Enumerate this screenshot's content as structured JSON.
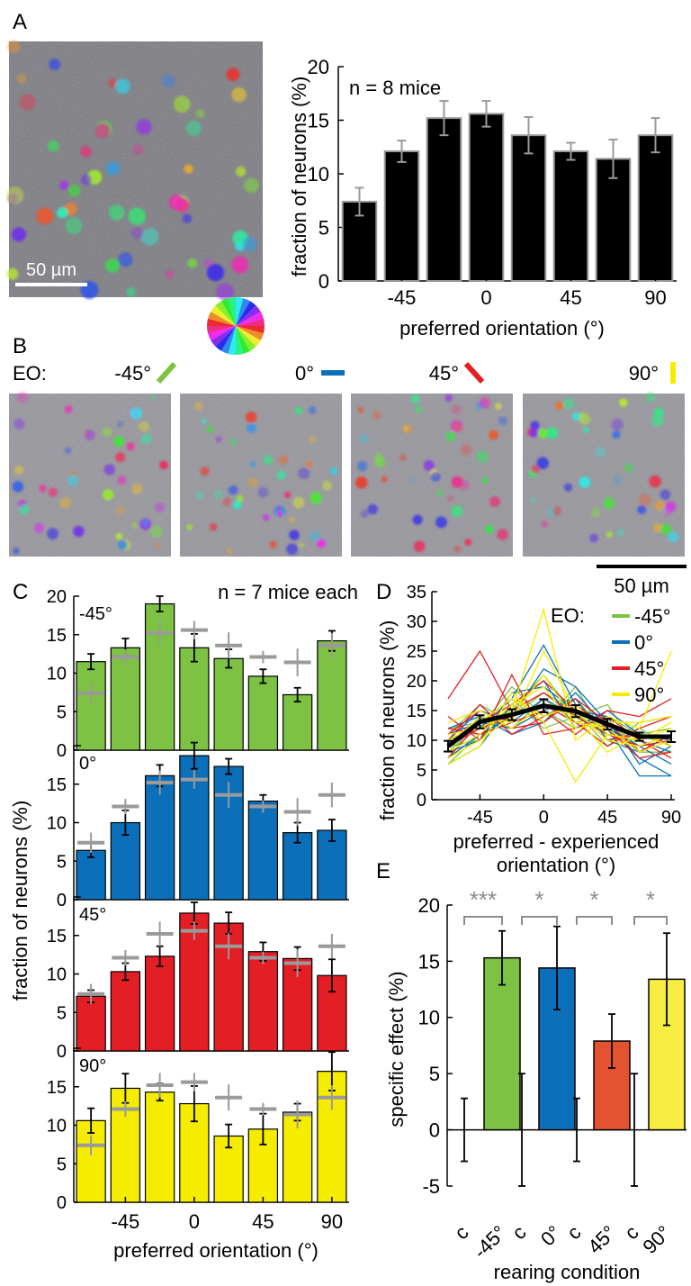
{
  "panel_labels": {
    "A": "A",
    "B": "B",
    "C": "C",
    "D": "D",
    "E": "E"
  },
  "scale_bar_A": "50 µm",
  "scale_bar_B": "50 µm",
  "eo_label": "EO:",
  "eo_titles": [
    "-45°",
    "0°",
    "45°",
    "90°"
  ],
  "eo_colors": {
    "-45": "#7dc242",
    "0": "#0b70b9",
    "45": "#e31e24",
    "90": "#f5ec00"
  },
  "chart_data": [
    {
      "id": "A",
      "type": "bar",
      "annotation": "n = 8 mice",
      "xlabel": "preferred orientation (°)",
      "ylabel": "fraction of neurons (%)",
      "ylim": [
        0,
        20
      ],
      "yticks": [
        0,
        5,
        10,
        15,
        20
      ],
      "xticks": [
        "-45",
        "0",
        "45",
        "90"
      ],
      "categories": [
        -67.5,
        -45,
        -22.5,
        0,
        22.5,
        45,
        67.5,
        90
      ],
      "values": [
        7.4,
        12.1,
        15.2,
        15.6,
        13.6,
        12.1,
        11.4,
        13.6
      ],
      "errors": [
        1.3,
        1.0,
        1.6,
        1.2,
        1.7,
        0.8,
        1.8,
        1.6
      ],
      "bar_color": "#000000"
    },
    {
      "id": "C",
      "type": "bar",
      "annotation": "n = 7 mice each",
      "xlabel": "preferred orientation (°)",
      "ylabel": "fraction of neurons (%)",
      "xticks": [
        "-45",
        "0",
        "45",
        "90"
      ],
      "categories": [
        -67.5,
        -45,
        -22.5,
        0,
        22.5,
        45,
        67.5,
        90
      ],
      "control_means": [
        7.4,
        12.1,
        15.2,
        15.6,
        13.6,
        12.1,
        11.4,
        13.6
      ],
      "control_errors": [
        1.3,
        1.0,
        1.6,
        1.2,
        1.7,
        0.8,
        1.8,
        1.6
      ],
      "subplots": [
        {
          "label": "-45°",
          "color": "#7dc242",
          "ylim": [
            0,
            20
          ],
          "yticks": [
            0,
            5,
            10,
            15,
            20
          ],
          "values": [
            11.5,
            13.3,
            19.0,
            13.3,
            11.9,
            9.6,
            7.2,
            14.2
          ],
          "errors": [
            1.0,
            1.2,
            1.0,
            1.8,
            1.2,
            0.9,
            0.9,
            1.3
          ]
        },
        {
          "label": "0°",
          "color": "#0b70b9",
          "ylim": [
            0,
            20
          ],
          "yticks": [
            0,
            5,
            10,
            15
          ],
          "values": [
            6.4,
            10.0,
            16.1,
            18.7,
            17.3,
            12.8,
            8.7,
            9.0
          ],
          "errors": [
            0.9,
            1.6,
            1.4,
            1.7,
            1.0,
            0.8,
            1.3,
            1.4
          ]
        },
        {
          "label": "45°",
          "color": "#e31e24",
          "ylim": [
            0,
            20
          ],
          "yticks": [
            0,
            5,
            10,
            15
          ],
          "values": [
            7.1,
            10.3,
            12.3,
            17.9,
            16.6,
            12.9,
            12.0,
            9.8
          ],
          "errors": [
            0.8,
            1.1,
            1.3,
            1.4,
            1.4,
            1.2,
            1.5,
            2.1
          ]
        },
        {
          "label": "90°",
          "color": "#f5ec00",
          "ylim": [
            0,
            20
          ],
          "yticks": [
            0,
            5,
            10,
            15
          ],
          "values": [
            10.6,
            14.8,
            14.3,
            12.8,
            8.6,
            9.5,
            11.7,
            17.0
          ],
          "errors": [
            1.6,
            1.9,
            1.1,
            2.3,
            1.5,
            2.0,
            1.1,
            2.5
          ]
        }
      ]
    },
    {
      "id": "D",
      "type": "line",
      "xlabel_lines": [
        "preferred - experienced",
        "orientation (°)"
      ],
      "ylabel": "fraction of neurons (%)",
      "xlim": [
        -67.5,
        90
      ],
      "ylim": [
        0,
        35
      ],
      "yticks": [
        0,
        5,
        10,
        15,
        20,
        25,
        30,
        35
      ],
      "xticks": [
        "-45",
        "0",
        "45",
        "90"
      ],
      "x": [
        -67.5,
        -45,
        -22.5,
        0,
        22.5,
        45,
        67.5,
        90
      ],
      "legend_title": "EO:",
      "legend": [
        {
          "name": "-45°",
          "color": "#7dc242"
        },
        {
          "name": "0°",
          "color": "#0b70b9"
        },
        {
          "name": "45°",
          "color": "#e31e24"
        },
        {
          "name": "90°",
          "color": "#f5ec00"
        }
      ],
      "mean": {
        "values": [
          9.0,
          13.1,
          14.3,
          15.8,
          14.9,
          12.7,
          10.6,
          10.6
        ],
        "errors": [
          0.9,
          1.1,
          0.9,
          1.1,
          1.0,
          0.9,
          0.7,
          0.9
        ],
        "color": "#000000"
      },
      "series": [
        {
          "color": "#7dc242",
          "values": [
            8,
            13,
            15,
            21,
            14,
            12,
            9,
            10
          ]
        },
        {
          "color": "#7dc242",
          "values": [
            10,
            12,
            19,
            14,
            17,
            11,
            10,
            8
          ]
        },
        {
          "color": "#7dc242",
          "values": [
            7,
            14,
            12,
            17,
            13,
            14,
            11,
            12
          ]
        },
        {
          "color": "#7dc242",
          "values": [
            9,
            10,
            16,
            13,
            19,
            10,
            12,
            9
          ]
        },
        {
          "color": "#7dc242",
          "values": [
            11,
            16,
            13,
            15,
            12,
            13,
            9,
            11
          ]
        },
        {
          "color": "#7dc242",
          "values": [
            6,
            11,
            14,
            18,
            15,
            9,
            13,
            14
          ]
        },
        {
          "color": "#7dc242",
          "values": [
            12,
            13,
            17,
            12,
            14,
            16,
            8,
            8
          ]
        },
        {
          "color": "#0b70b9",
          "values": [
            9,
            12,
            17,
            26,
            16,
            12,
            9,
            6
          ]
        },
        {
          "color": "#0b70b9",
          "values": [
            7,
            11,
            14,
            22,
            19,
            13,
            7,
            4
          ]
        },
        {
          "color": "#0b70b9",
          "values": [
            10,
            15,
            13,
            17,
            14,
            11,
            10,
            8
          ]
        },
        {
          "color": "#0b70b9",
          "values": [
            6,
            9,
            16,
            20,
            12,
            15,
            11,
            10
          ]
        },
        {
          "color": "#0b70b9",
          "values": [
            11,
            13,
            12,
            15,
            17,
            10,
            8,
            11
          ]
        },
        {
          "color": "#0b70b9",
          "values": [
            8,
            10,
            18,
            19,
            15,
            14,
            6,
            9
          ]
        },
        {
          "color": "#0b70b9",
          "values": [
            12,
            14,
            11,
            13,
            18,
            12,
            4,
            4
          ]
        },
        {
          "color": "#e31e24",
          "values": [
            17,
            25,
            15,
            18,
            14,
            11,
            9,
            10
          ]
        },
        {
          "color": "#e31e24",
          "values": [
            14,
            10,
            21,
            11,
            12,
            14,
            10,
            7
          ]
        },
        {
          "color": "#e31e24",
          "values": [
            9,
            12,
            14,
            16,
            13,
            9,
            12,
            14
          ]
        },
        {
          "color": "#e31e24",
          "values": [
            11,
            15,
            12,
            13,
            17,
            13,
            8,
            11
          ]
        },
        {
          "color": "#e31e24",
          "values": [
            7,
            13,
            16,
            20,
            15,
            10,
            11,
            9
          ]
        },
        {
          "color": "#e31e24",
          "values": [
            12,
            11,
            13,
            15,
            11,
            15,
            14,
            17
          ]
        },
        {
          "color": "#e31e24",
          "values": [
            10,
            16,
            11,
            14,
            16,
            12,
            7,
            8
          ]
        },
        {
          "color": "#f5ec00",
          "values": [
            11,
            12,
            15,
            32,
            10,
            14,
            12,
            25
          ]
        },
        {
          "color": "#f5ec00",
          "values": [
            6,
            9,
            18,
            13,
            3,
            11,
            10,
            13
          ]
        },
        {
          "color": "#f5ec00",
          "values": [
            9,
            14,
            13,
            25,
            15,
            10,
            9,
            11
          ]
        },
        {
          "color": "#f5ec00",
          "values": [
            8,
            11,
            16,
            19,
            12,
            13,
            13,
            14
          ]
        },
        {
          "color": "#f5ec00",
          "values": [
            13,
            15,
            12,
            16,
            14,
            8,
            11,
            9
          ]
        },
        {
          "color": "#f5ec00",
          "values": [
            7,
            10,
            14,
            21,
            13,
            12,
            8,
            10
          ]
        },
        {
          "color": "#f5ec00",
          "values": [
            10,
            13,
            17,
            14,
            16,
            11,
            10,
            12
          ]
        }
      ]
    },
    {
      "id": "E",
      "type": "bar",
      "xlabel": "rearing condition",
      "ylabel": "specific effect (%)",
      "ylim": [
        -5,
        20
      ],
      "yticks": [
        -5,
        0,
        5,
        10,
        15,
        20
      ],
      "categories": [
        "c",
        "-45°",
        "c",
        "0°",
        "c",
        "45°",
        "c",
        "90°"
      ],
      "values": [
        0,
        15.3,
        0,
        14.4,
        0,
        7.9,
        0,
        13.4
      ],
      "errors": [
        2.8,
        2.4,
        5.0,
        3.7,
        2.8,
        2.4,
        5.0,
        4.1
      ],
      "colors": [
        "#000000",
        "#7dc242",
        "#000000",
        "#0b70b9",
        "#000000",
        "#e4532f",
        "#000000",
        "#f8ee42"
      ],
      "significance": [
        "***",
        "*",
        "*",
        "*"
      ]
    }
  ]
}
